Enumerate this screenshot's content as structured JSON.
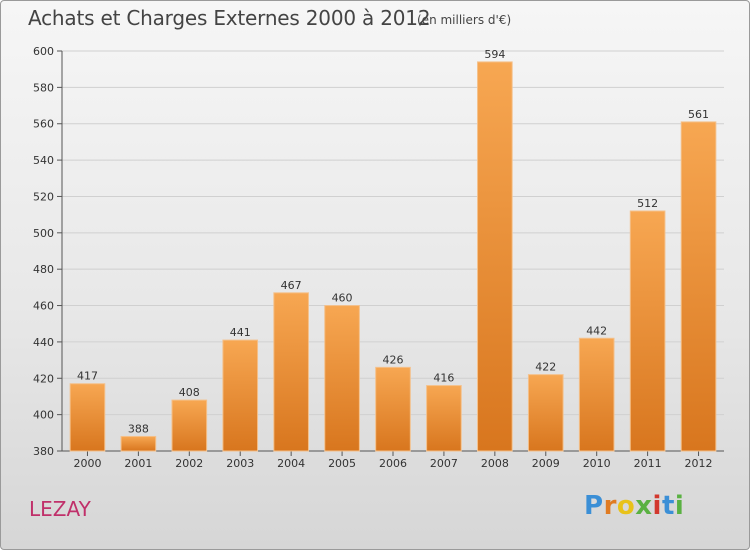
{
  "header": {
    "title": "Achats et Charges Externes 2000 à 2012",
    "unit": "(en milliers d'€)"
  },
  "footer": {
    "city": "LEZAY",
    "logo": "Proxiti"
  },
  "colors": {
    "bar_light": "#f7a752",
    "bar_dark": "#d8761e",
    "city": "#c0306a",
    "grid": "#d0d0d0"
  },
  "chart_data": {
    "type": "bar",
    "title": "Achats et Charges Externes 2000 à 2012",
    "subtitle": "(en milliers d'€)",
    "categories": [
      "2000",
      "2001",
      "2002",
      "2003",
      "2004",
      "2005",
      "2006",
      "2007",
      "2008",
      "2009",
      "2010",
      "2011",
      "2012"
    ],
    "values": [
      417,
      388,
      408,
      441,
      467,
      460,
      426,
      416,
      594,
      422,
      442,
      512,
      561
    ],
    "ylim": [
      380,
      600
    ],
    "yticks": [
      380,
      400,
      420,
      440,
      460,
      480,
      500,
      520,
      540,
      560,
      580,
      600
    ],
    "grid": true,
    "xlabel": "",
    "ylabel": ""
  }
}
